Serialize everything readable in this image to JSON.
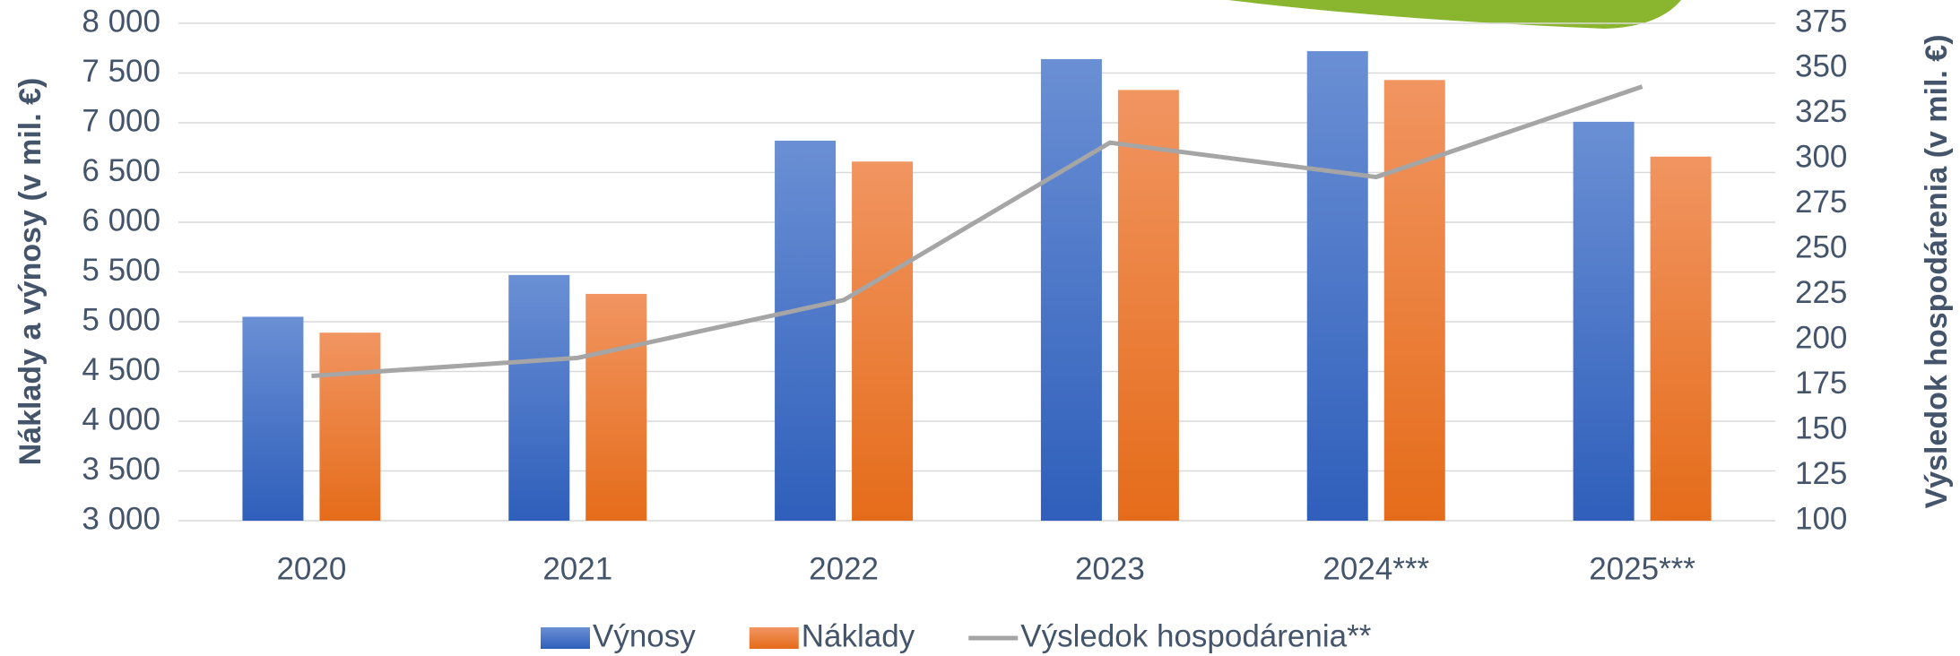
{
  "chart_data": {
    "type": "bar-line",
    "y_label": "Náklady a výnosy (v mil. €)",
    "y2_label": "Výsledok hospodárenia (v mil. €)",
    "categories": [
      "2020",
      "2021",
      "2022",
      "2023",
      "2024***",
      "2025***"
    ],
    "series": [
      {
        "name": "Výnosy",
        "type": "bar",
        "color": "#4472c4",
        "values": [
          5050,
          5470,
          6820,
          7640,
          7720,
          7010
        ]
      },
      {
        "name": "Náklady",
        "type": "bar",
        "color": "#ed7d31",
        "values": [
          4890,
          5280,
          6610,
          7330,
          7430,
          6660
        ]
      },
      {
        "name": "Výsledok hospodárenia**",
        "type": "line",
        "axis": "y2",
        "color": "#a5a5a5",
        "values": [
          180,
          190,
          222,
          309,
          290,
          340
        ]
      }
    ],
    "ylim": [
      3000,
      8000
    ],
    "yticks": [
      {
        "value": 3000,
        "label": "3 000"
      },
      {
        "value": 3500,
        "label": "3 500"
      },
      {
        "value": 4000,
        "label": "4 000"
      },
      {
        "value": 4500,
        "label": "4 500"
      },
      {
        "value": 5000,
        "label": "5 000"
      },
      {
        "value": 5500,
        "label": "5 500"
      },
      {
        "value": 6000,
        "label": "6 000"
      },
      {
        "value": 6500,
        "label": "6 500"
      },
      {
        "value": 7000,
        "label": "7 000"
      },
      {
        "value": 7500,
        "label": "7 500"
      },
      {
        "value": 8000,
        "label": "8 000"
      }
    ],
    "y2lim": [
      100,
      375
    ],
    "y2ticks": [
      100,
      125,
      150,
      175,
      200,
      225,
      250,
      275,
      300,
      325,
      350,
      375
    ],
    "grid": true
  }
}
